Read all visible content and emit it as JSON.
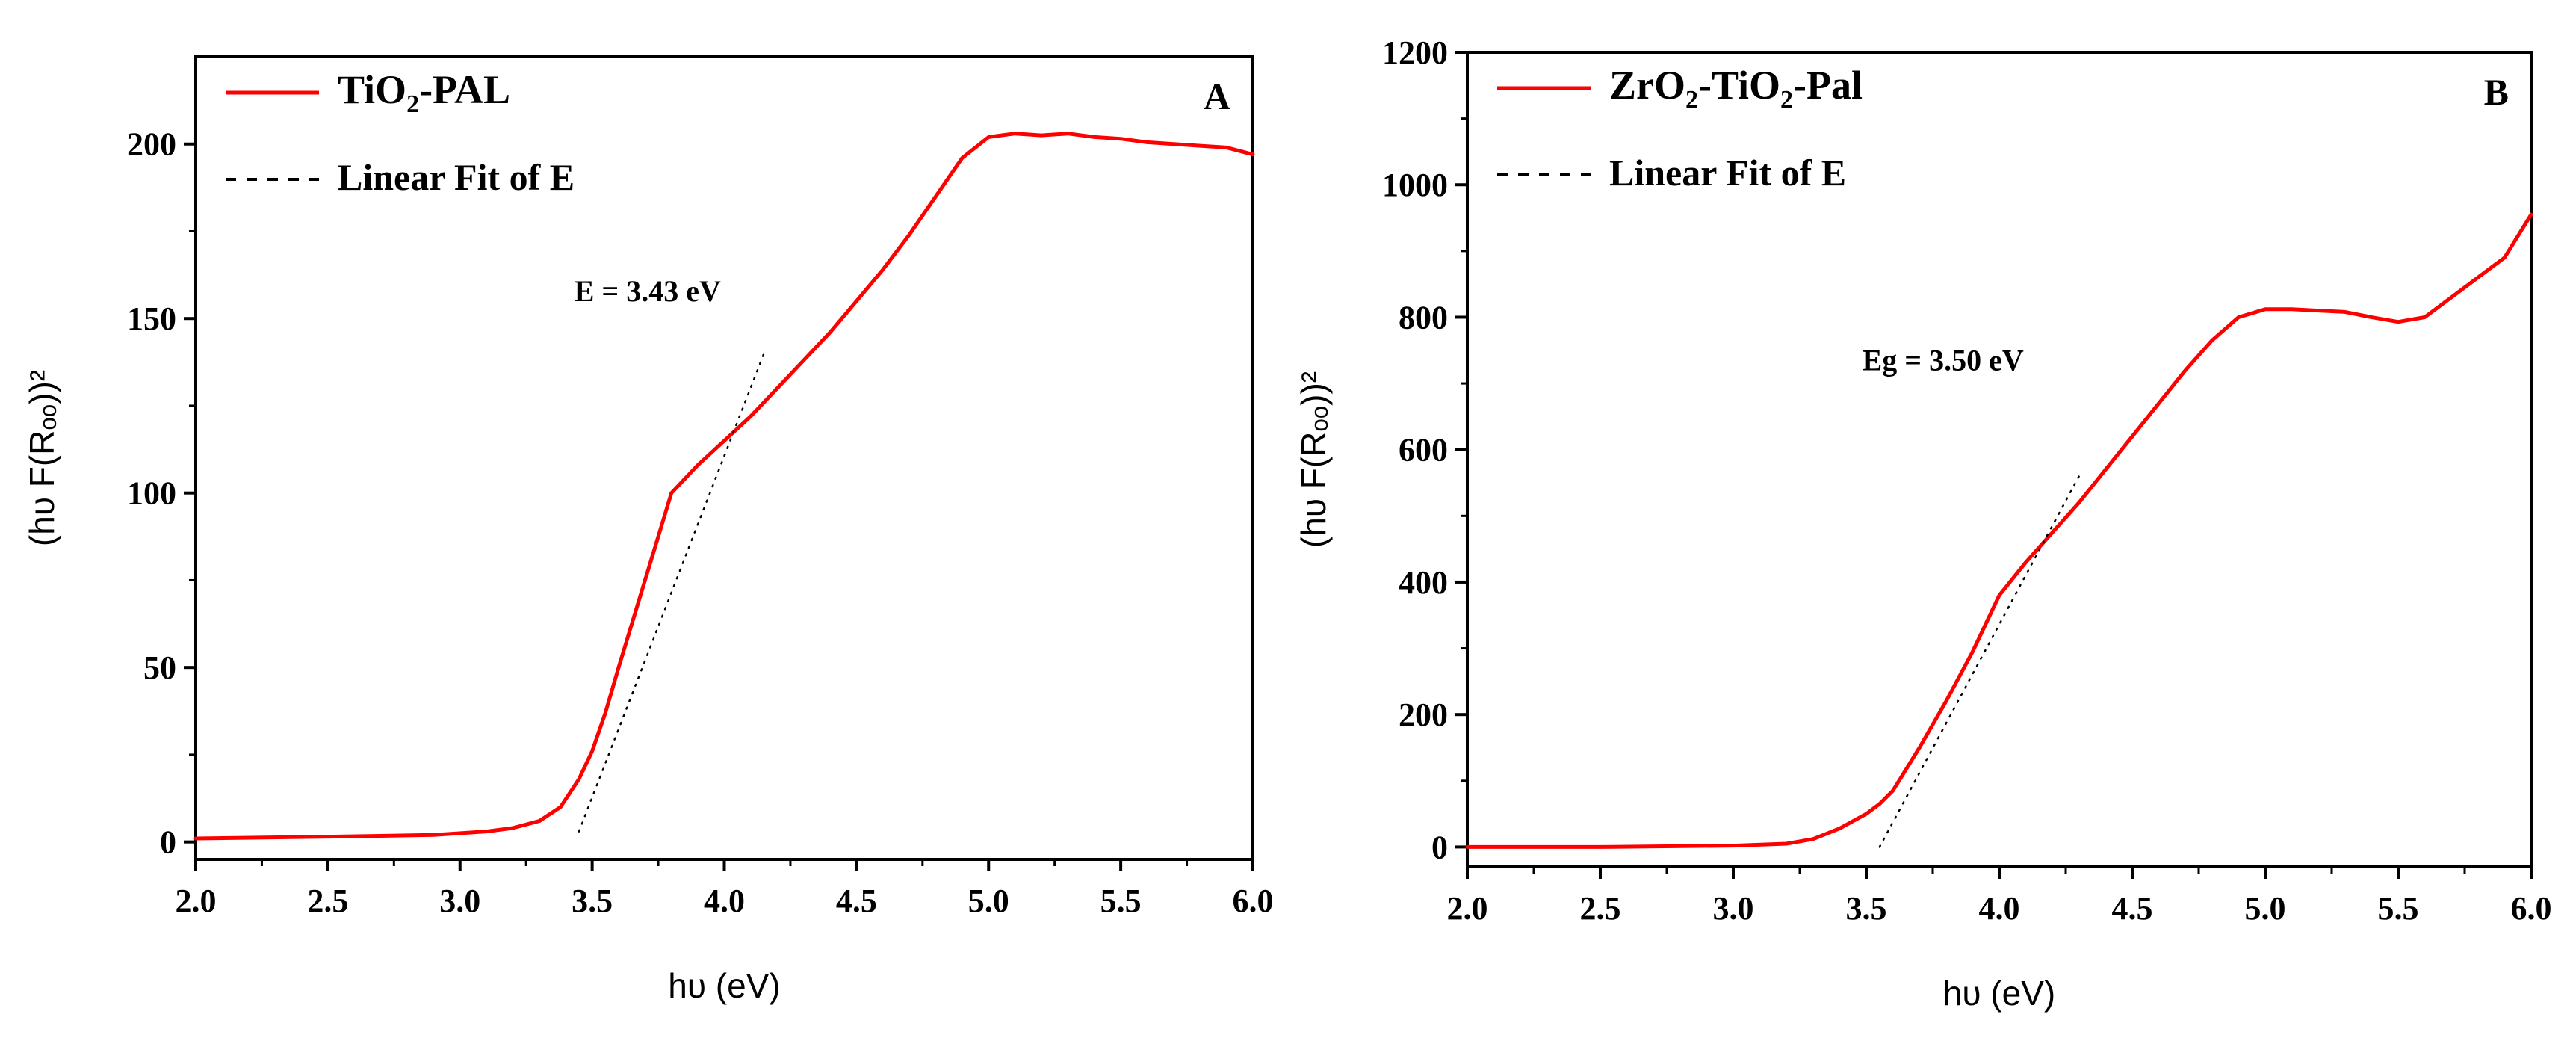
{
  "colors": {
    "series": "#ff0000",
    "fit": "#000000",
    "axis": "#000000",
    "background": "#ffffff"
  },
  "chart_data": [
    {
      "type": "line",
      "panel": "A",
      "xlabel": "hυ (eV)",
      "ylabel": "(hυ F(Rₒₒ))²",
      "xlim": [
        2.0,
        6.0
      ],
      "ylim": [
        -5,
        225
      ],
      "x_ticks": [
        2.0,
        2.5,
        3.0,
        3.5,
        4.0,
        4.5,
        5.0,
        5.5,
        6.0
      ],
      "x_tick_labels": [
        "2.0",
        "2.5",
        "3.0",
        "3.5",
        "4.0",
        "4.5",
        "5.0",
        "5.5",
        "6.0"
      ],
      "y_ticks": [
        0,
        50,
        100,
        150,
        200
      ],
      "y_tick_labels": [
        "0",
        "50",
        "100",
        "150",
        "200"
      ],
      "legend_position": "top-left",
      "legend": [
        {
          "base": "TiO",
          "sub": "2",
          "rest": "-PAL",
          "style": "solid"
        },
        {
          "text": "Linear Fit of E",
          "style": "dashed"
        }
      ],
      "annotation": {
        "text": "E = 3.43 eV",
        "x": 3.8,
        "y": 155
      },
      "series": [
        {
          "name": "TiO2-PAL",
          "x": [
            2.0,
            2.5,
            2.9,
            3.1,
            3.2,
            3.3,
            3.38,
            3.45,
            3.5,
            3.55,
            3.6,
            3.7,
            3.8,
            3.9,
            4.0,
            4.1,
            4.2,
            4.3,
            4.4,
            4.5,
            4.6,
            4.7,
            4.8,
            4.9,
            5.0,
            5.1,
            5.2,
            5.3,
            5.4,
            5.5,
            5.6,
            5.7,
            5.8,
            5.9,
            6.0
          ],
          "y": [
            1,
            1.5,
            2,
            3,
            4,
            6,
            10,
            18,
            26,
            37,
            50,
            75,
            100,
            108,
            115,
            122,
            130,
            138,
            146,
            155,
            164,
            174,
            185,
            196,
            202,
            203,
            202.5,
            203,
            202,
            201.5,
            200.5,
            200,
            199.5,
            199,
            197
          ]
        },
        {
          "name": "Linear Fit of E",
          "x": [
            3.45,
            4.15
          ],
          "y": [
            3,
            140
          ]
        }
      ]
    },
    {
      "type": "line",
      "panel": "B",
      "xlabel": "hυ (eV)",
      "ylabel": "(hυ F(Rₒₒ))²",
      "xlim": [
        2.0,
        6.0
      ],
      "ylim": [
        -30,
        1200
      ],
      "x_ticks": [
        2.0,
        2.5,
        3.0,
        3.5,
        4.0,
        4.5,
        5.0,
        5.5,
        6.0
      ],
      "x_tick_labels": [
        "2.0",
        "2.5",
        "3.0",
        "3.5",
        "4.0",
        "4.5",
        "5.0",
        "5.5",
        "6.0"
      ],
      "y_ticks": [
        0,
        200,
        400,
        600,
        800,
        1000,
        1200
      ],
      "y_tick_labels": [
        "0",
        "200",
        "400",
        "600",
        "800",
        "1000",
        "1200"
      ],
      "legend_position": "top-left",
      "legend": [
        {
          "base": "ZrO",
          "sub": "2",
          "rest": "-TiO",
          "sub2": "2",
          "rest2": "-Pal",
          "style": "solid"
        },
        {
          "text": "Linear Fit of E",
          "style": "dashed"
        }
      ],
      "annotation": {
        "text": "Eg = 3.50 eV",
        "x": 3.85,
        "y": 720
      },
      "series": [
        {
          "name": "ZrO2-TiO2-Pal",
          "x": [
            2.0,
            2.5,
            3.0,
            3.2,
            3.3,
            3.4,
            3.5,
            3.55,
            3.6,
            3.7,
            3.8,
            3.9,
            4.0,
            4.1,
            4.2,
            4.3,
            4.4,
            4.5,
            4.6,
            4.7,
            4.8,
            4.9,
            5.0,
            5.1,
            5.2,
            5.3,
            5.4,
            5.5,
            5.6,
            5.7,
            5.8,
            5.9,
            6.0
          ],
          "y": [
            0,
            0,
            2,
            5,
            12,
            28,
            50,
            65,
            85,
            150,
            220,
            295,
            380,
            430,
            475,
            520,
            570,
            620,
            670,
            720,
            765,
            800,
            812,
            812,
            810,
            808,
            800,
            793,
            800,
            830,
            860,
            890,
            955
          ]
        },
        {
          "name": "Linear Fit of E",
          "x": [
            3.55,
            4.3
          ],
          "y": [
            0,
            560
          ]
        }
      ]
    }
  ]
}
